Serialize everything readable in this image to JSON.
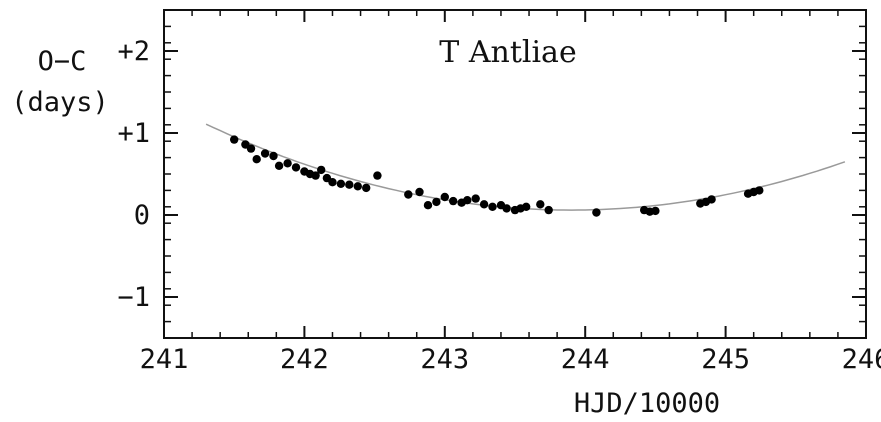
{
  "chart_data": {
    "type": "scatter",
    "title": "T Antliae",
    "xlabel": "HJD/10000",
    "ylabel_line1": "O−C",
    "ylabel_line2": "(days)",
    "xlim": [
      241,
      246
    ],
    "ylim": [
      -1.5,
      2.5
    ],
    "xticks": [
      241,
      242,
      243,
      244,
      245,
      246
    ],
    "yticks": [
      2,
      1,
      0,
      -1
    ],
    "xtick_labels": [
      "241",
      "242",
      "243",
      "244",
      "245",
      "246"
    ],
    "ytick_labels": [
      "+2",
      "+1",
      "0",
      "−1"
    ],
    "grid": false,
    "points": [
      {
        "x": 241.5,
        "y": 0.92
      },
      {
        "x": 241.58,
        "y": 0.86
      },
      {
        "x": 241.62,
        "y": 0.81
      },
      {
        "x": 241.66,
        "y": 0.68
      },
      {
        "x": 241.72,
        "y": 0.75
      },
      {
        "x": 241.78,
        "y": 0.72
      },
      {
        "x": 241.82,
        "y": 0.6
      },
      {
        "x": 241.88,
        "y": 0.63
      },
      {
        "x": 241.94,
        "y": 0.58
      },
      {
        "x": 242.0,
        "y": 0.53
      },
      {
        "x": 242.04,
        "y": 0.5
      },
      {
        "x": 242.08,
        "y": 0.48
      },
      {
        "x": 242.12,
        "y": 0.55
      },
      {
        "x": 242.16,
        "y": 0.45
      },
      {
        "x": 242.2,
        "y": 0.4
      },
      {
        "x": 242.26,
        "y": 0.38
      },
      {
        "x": 242.32,
        "y": 0.37
      },
      {
        "x": 242.38,
        "y": 0.35
      },
      {
        "x": 242.44,
        "y": 0.33
      },
      {
        "x": 242.52,
        "y": 0.48
      },
      {
        "x": 242.74,
        "y": 0.25
      },
      {
        "x": 242.82,
        "y": 0.28
      },
      {
        "x": 242.88,
        "y": 0.12
      },
      {
        "x": 242.94,
        "y": 0.16
      },
      {
        "x": 243.0,
        "y": 0.22
      },
      {
        "x": 243.06,
        "y": 0.17
      },
      {
        "x": 243.12,
        "y": 0.15
      },
      {
        "x": 243.16,
        "y": 0.18
      },
      {
        "x": 243.22,
        "y": 0.2
      },
      {
        "x": 243.28,
        "y": 0.13
      },
      {
        "x": 243.34,
        "y": 0.1
      },
      {
        "x": 243.4,
        "y": 0.12
      },
      {
        "x": 243.44,
        "y": 0.08
      },
      {
        "x": 243.5,
        "y": 0.06
      },
      {
        "x": 243.54,
        "y": 0.08
      },
      {
        "x": 243.58,
        "y": 0.1
      },
      {
        "x": 243.68,
        "y": 0.13
      },
      {
        "x": 243.74,
        "y": 0.06
      },
      {
        "x": 244.08,
        "y": 0.03
      },
      {
        "x": 244.42,
        "y": 0.06
      },
      {
        "x": 244.46,
        "y": 0.04
      },
      {
        "x": 244.5,
        "y": 0.05
      },
      {
        "x": 244.82,
        "y": 0.14
      },
      {
        "x": 244.86,
        "y": 0.16
      },
      {
        "x": 244.9,
        "y": 0.19
      },
      {
        "x": 245.16,
        "y": 0.26
      },
      {
        "x": 245.2,
        "y": 0.28
      },
      {
        "x": 245.24,
        "y": 0.3
      }
    ],
    "fit_curve": {
      "type": "parabola",
      "vertex_x": 243.9,
      "vertex_y": 0.06,
      "curvature": 0.155,
      "x_range": [
        241.3,
        245.85
      ]
    },
    "colors": {
      "points": "#000000",
      "curve": "#9a9a9a",
      "axes": "#111111"
    }
  }
}
